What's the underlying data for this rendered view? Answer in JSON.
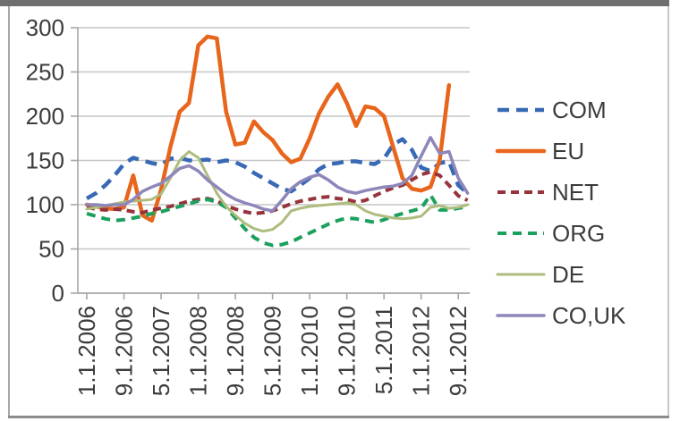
{
  "frame": {
    "top_bar_color": "#6f6f6f",
    "left_border_color": "#a9a9a9",
    "right_border_color": "#c6c6c6",
    "bottom_border_color": "#8d8d8d",
    "background": "#ffffff"
  },
  "chart_data": {
    "type": "line",
    "title": "",
    "xlabel": "",
    "ylabel": "",
    "ylim": [
      0,
      300
    ],
    "y_ticks": [
      0,
      50,
      100,
      150,
      200,
      250,
      300
    ],
    "grid": "horizontal",
    "grid_color": "#c6c6c6",
    "axis_color": "#a6a6a6",
    "label_color": "#3c3c3c",
    "legend_position": "right",
    "x_tick_labels": [
      "1.1.2006",
      "9.1.2006",
      "5.1.2007",
      "1.1.2008",
      "9.1.2008",
      "5.1.2009",
      "1.1.2010",
      "9.1.2010",
      "5.1.2011",
      "1.1.2012",
      "9.1.2012"
    ],
    "x_tick_months": [
      0,
      8,
      16,
      24,
      32,
      40,
      48,
      56,
      64,
      72,
      80
    ],
    "month_step": 2,
    "series": [
      {
        "name": "COM",
        "color": "#3869b4",
        "dash": "13 8",
        "width": 4.5,
        "values": [
          107,
          113,
          122,
          133,
          146,
          153,
          150,
          147,
          145,
          152,
          153,
          150,
          150,
          151,
          148,
          150,
          148,
          143,
          136,
          130,
          124,
          118,
          115,
          122,
          130,
          140,
          146,
          147,
          149,
          149,
          147,
          146,
          152,
          168,
          174,
          162,
          142,
          138,
          147,
          149,
          122,
          113
        ]
      },
      {
        "name": "EU",
        "color": "#e8651c",
        "dash": null,
        "width": 4.5,
        "values": [
          100,
          98,
          96,
          95,
          97,
          133,
          88,
          82,
          117,
          165,
          205,
          215,
          280,
          290,
          288,
          205,
          168,
          170,
          194,
          182,
          173,
          158,
          148,
          152,
          175,
          203,
          222,
          236,
          215,
          189,
          211,
          209,
          200,
          165,
          130,
          118,
          116,
          120,
          150,
          235,
          null,
          null
        ]
      },
      {
        "name": "NET",
        "color": "#97333c",
        "dash": "9 6",
        "width": 4,
        "values": [
          97,
          95,
          94,
          95,
          94,
          92,
          91,
          94,
          96,
          98,
          101,
          104,
          106,
          107,
          104,
          99,
          95,
          92,
          90,
          91,
          93,
          97,
          101,
          104,
          106,
          108,
          109,
          107,
          106,
          103,
          105,
          110,
          115,
          119,
          122,
          128,
          134,
          137,
          133,
          122,
          110,
          105
        ]
      },
      {
        "name": "ORG",
        "color": "#1ba05d",
        "dash": "10 7",
        "width": 4,
        "values": [
          90,
          87,
          84,
          82,
          83,
          85,
          87,
          90,
          92,
          95,
          98,
          101,
          104,
          106,
          103,
          97,
          85,
          73,
          63,
          57,
          54,
          55,
          58,
          63,
          68,
          73,
          78,
          82,
          85,
          84,
          82,
          80,
          83,
          87,
          90,
          93,
          96,
          111,
          94,
          94,
          96,
          98
        ]
      },
      {
        "name": "DE",
        "color": "#aebc7e",
        "dash": null,
        "width": 3,
        "values": [
          95,
          97,
          99,
          101,
          103,
          104,
          105,
          106,
          112,
          130,
          150,
          160,
          153,
          133,
          113,
          98,
          88,
          79,
          73,
          70,
          72,
          80,
          93,
          96,
          98,
          99,
          100,
          101,
          102,
          100,
          93,
          89,
          87,
          85,
          84,
          85,
          87,
          97,
          99,
          96,
          97,
          100
        ]
      },
      {
        "name": "CO,UK",
        "color": "#8d87ba",
        "dash": null,
        "width": 3.5,
        "values": [
          100,
          100,
          99,
          100,
          100,
          106,
          115,
          120,
          124,
          132,
          141,
          144,
          138,
          128,
          120,
          112,
          106,
          102,
          99,
          95,
          93,
          105,
          118,
          126,
          131,
          134,
          128,
          120,
          115,
          113,
          116,
          118,
          120,
          121,
          124,
          133,
          155,
          176,
          158,
          160,
          130,
          113
        ]
      }
    ]
  }
}
